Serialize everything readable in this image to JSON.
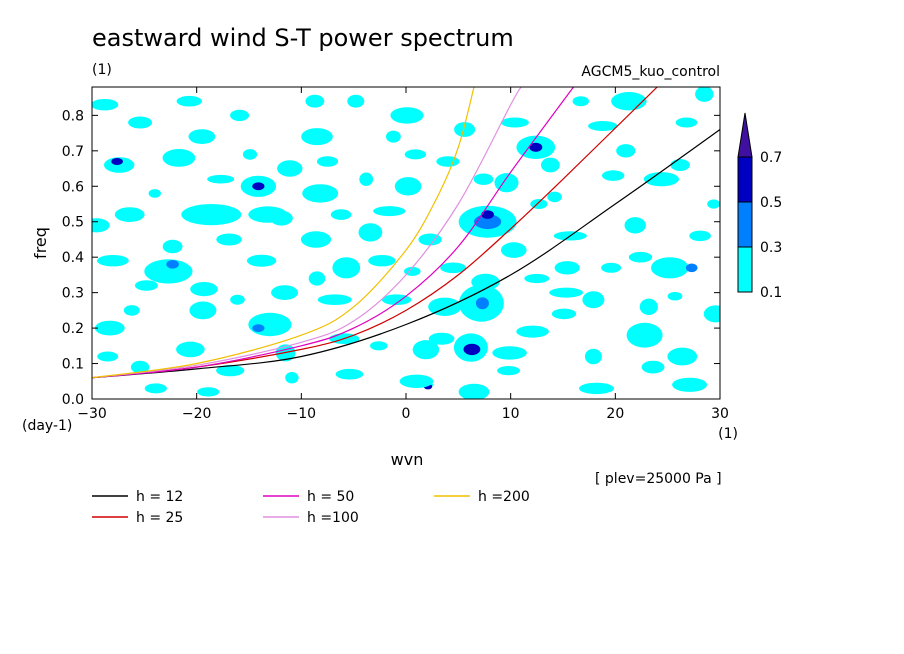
{
  "chart_data": {
    "type": "heatmap",
    "title": "eastward wind S-T power spectrum",
    "subtitle_left": "(1)",
    "subtitle_right": "AGCM5_kuo_control",
    "xlabel": "wvn",
    "ylabel": "freq",
    "x_unit_label": "(1)",
    "y_unit_label": "(day-1)",
    "xlim": [
      -30,
      30
    ],
    "ylim": [
      0,
      0.88
    ],
    "x_ticks": [
      -30,
      -20,
      -10,
      0,
      10,
      20,
      30
    ],
    "y_ticks": [
      0.0,
      0.1,
      0.2,
      0.3,
      0.4,
      0.5,
      0.6,
      0.7,
      0.8
    ],
    "y_tick_labels": [
      "0.0",
      "0.1",
      "0.2",
      "0.3",
      "0.4",
      "0.5",
      "0.6",
      "0.7",
      "0.8"
    ],
    "level_note": "[ plev=25000 Pa ]",
    "colorbar": {
      "levels": [
        "0.1",
        "0.3",
        "0.5",
        "0.7"
      ],
      "colors": [
        "#00ffff",
        "#0080ff",
        "#0000c0",
        "#4010a0"
      ]
    },
    "dispersion_curves": [
      {
        "name": "h = 12",
        "color": "#000000",
        "x": [
          -30,
          -20,
          -10,
          0,
          10,
          20,
          30
        ],
        "y": [
          0.06,
          0.085,
          0.12,
          0.21,
          0.35,
          0.55,
          0.76
        ]
      },
      {
        "name": "h = 25",
        "color": "#d00000",
        "x": [
          -30,
          -20,
          -10,
          -5,
          0,
          5,
          10,
          15,
          24
        ],
        "y": [
          0.06,
          0.09,
          0.14,
          0.18,
          0.25,
          0.35,
          0.48,
          0.62,
          0.88
        ]
      },
      {
        "name": "h = 50",
        "color": "#e000c0",
        "x": [
          -30,
          -20,
          -10,
          -5,
          0,
          5,
          10,
          16
        ],
        "y": [
          0.06,
          0.09,
          0.15,
          0.2,
          0.29,
          0.43,
          0.64,
          0.88
        ]
      },
      {
        "name": "h =100",
        "color": "#e090e0",
        "x": [
          -30,
          -20,
          -10,
          -5,
          0,
          5,
          10,
          11
        ],
        "y": [
          0.06,
          0.095,
          0.16,
          0.22,
          0.35,
          0.55,
          0.83,
          0.88
        ]
      },
      {
        "name": "h =200",
        "color": "#f0c000",
        "x": [
          -30,
          -20,
          -10,
          -5,
          0,
          3,
          5,
          6.5
        ],
        "y": [
          0.06,
          0.1,
          0.18,
          0.26,
          0.42,
          0.57,
          0.71,
          0.88
        ]
      }
    ],
    "blobs": [
      {
        "x": 1.9,
        "y": 0.139,
        "rx": 1.26,
        "ry": 0.027,
        "level": 0
      },
      {
        "x": 6.2,
        "y": 0.145,
        "rx": 1.62,
        "ry": 0.04,
        "level": 0
      },
      {
        "x": 6.3,
        "y": 0.14,
        "rx": 0.8,
        "ry": 0.016,
        "level": 2
      },
      {
        "x": 7.2,
        "y": 0.27,
        "rx": 2.15,
        "ry": 0.052,
        "level": 0
      },
      {
        "x": 7.3,
        "y": 0.27,
        "rx": 0.62,
        "ry": 0.017,
        "level": 1
      },
      {
        "x": 7.8,
        "y": 0.5,
        "rx": 2.76,
        "ry": 0.045,
        "level": 0
      },
      {
        "x": 7.8,
        "y": 0.5,
        "rx": 1.3,
        "ry": 0.021,
        "level": 1
      },
      {
        "x": 7.8,
        "y": 0.52,
        "rx": 0.6,
        "ry": 0.012,
        "level": 2
      },
      {
        "x": 12.4,
        "y": 0.71,
        "rx": 1.85,
        "ry": 0.033,
        "level": 0
      },
      {
        "x": 12.4,
        "y": 0.71,
        "rx": 0.62,
        "ry": 0.013,
        "level": 2
      },
      {
        "x": 25.2,
        "y": 0.37,
        "rx": 1.8,
        "ry": 0.03,
        "level": 0
      },
      {
        "x": 27.3,
        "y": 0.37,
        "rx": 0.55,
        "ry": 0.012,
        "level": 1
      },
      {
        "x": -22.7,
        "y": 0.36,
        "rx": 2.3,
        "ry": 0.034,
        "level": 0
      },
      {
        "x": -22.3,
        "y": 0.38,
        "rx": 0.6,
        "ry": 0.012,
        "level": 1
      },
      {
        "x": -27.4,
        "y": 0.66,
        "rx": 1.45,
        "ry": 0.022,
        "level": 0
      },
      {
        "x": -27.6,
        "y": 0.67,
        "rx": 0.55,
        "ry": 0.01,
        "level": 2
      },
      {
        "x": -14.1,
        "y": 0.6,
        "rx": 1.69,
        "ry": 0.03,
        "level": 0
      },
      {
        "x": -14.1,
        "y": 0.6,
        "rx": 0.58,
        "ry": 0.011,
        "level": 2
      },
      {
        "x": -13.2,
        "y": 0.52,
        "rx": 1.86,
        "ry": 0.023,
        "level": 0
      },
      {
        "x": -18.6,
        "y": 0.52,
        "rx": 2.87,
        "ry": 0.03,
        "level": 0
      },
      {
        "x": -13.0,
        "y": 0.21,
        "rx": 2.06,
        "ry": 0.033,
        "level": 0
      },
      {
        "x": -14.1,
        "y": 0.2,
        "rx": 0.58,
        "ry": 0.011,
        "level": 1
      },
      {
        "x": 2.0,
        "y": 0.04,
        "rx": 0.6,
        "ry": 0.01,
        "level": 0
      },
      {
        "x": 2.1,
        "y": 0.035,
        "rx": 0.4,
        "ry": 0.008,
        "level": 2
      },
      {
        "x": 14.2,
        "y": 0.57,
        "rx": 0.7,
        "ry": 0.015,
        "level": 0
      },
      {
        "x": 22.8,
        "y": 0.18,
        "rx": 1.72,
        "ry": 0.035,
        "level": 0
      },
      {
        "x": -28.3,
        "y": 0.2,
        "rx": 1.42,
        "ry": 0.021,
        "level": 0
      },
      {
        "x": -19.5,
        "y": 0.74,
        "rx": 1.28,
        "ry": 0.021,
        "level": 0
      },
      {
        "x": -8.5,
        "y": 0.74,
        "rx": 1.51,
        "ry": 0.024,
        "level": 0
      },
      {
        "x": 0.2,
        "y": 0.6,
        "rx": 1.27,
        "ry": 0.026,
        "level": 0
      },
      {
        "x": -1.2,
        "y": 0.74,
        "rx": 0.71,
        "ry": 0.017,
        "level": 0
      },
      {
        "x": -5.7,
        "y": 0.37,
        "rx": 1.33,
        "ry": 0.03,
        "level": 0
      },
      {
        "x": -21.7,
        "y": 0.68,
        "rx": 1.57,
        "ry": 0.025,
        "level": 0
      },
      {
        "x": -8.2,
        "y": 0.58,
        "rx": 1.72,
        "ry": 0.026,
        "level": 0
      },
      {
        "x": 7.6,
        "y": 0.33,
        "rx": 1.36,
        "ry": 0.023,
        "level": 0
      },
      {
        "x": 15.4,
        "y": 0.37,
        "rx": 1.2,
        "ry": 0.019,
        "level": 0
      },
      {
        "x": 21.9,
        "y": 0.49,
        "rx": 1.02,
        "ry": 0.023,
        "level": 0
      },
      {
        "x": -26.2,
        "y": 0.25,
        "rx": 0.76,
        "ry": 0.015,
        "level": 0
      },
      {
        "x": -16.1,
        "y": 0.28,
        "rx": 0.7,
        "ry": 0.014,
        "level": 0
      },
      {
        "x": 3.7,
        "y": 0.26,
        "rx": 1.58,
        "ry": 0.026,
        "level": 0
      },
      {
        "x": 26.2,
        "y": 0.66,
        "rx": 0.93,
        "ry": 0.017,
        "level": 0
      },
      {
        "x": -3.4,
        "y": 0.47,
        "rx": 1.14,
        "ry": 0.026,
        "level": 0
      },
      {
        "x": 9.6,
        "y": 0.61,
        "rx": 1.15,
        "ry": 0.027,
        "level": 0
      },
      {
        "x": -8.5,
        "y": 0.34,
        "rx": 0.79,
        "ry": 0.02,
        "level": 0
      },
      {
        "x": 17.9,
        "y": 0.28,
        "rx": 1.05,
        "ry": 0.024,
        "level": 0
      },
      {
        "x": -19.4,
        "y": 0.25,
        "rx": 1.29,
        "ry": 0.025,
        "level": 0
      },
      {
        "x": 1.0,
        "y": 0.05,
        "rx": 1.61,
        "ry": 0.019,
        "level": 0
      },
      {
        "x": -11.9,
        "y": 0.51,
        "rx": 1.09,
        "ry": 0.021,
        "level": 0
      },
      {
        "x": -14.9,
        "y": 0.69,
        "rx": 0.68,
        "ry": 0.015,
        "level": 0
      },
      {
        "x": 22.4,
        "y": 0.4,
        "rx": 1.12,
        "ry": 0.015,
        "level": 0
      },
      {
        "x": 26.4,
        "y": 0.12,
        "rx": 1.42,
        "ry": 0.025,
        "level": 0
      },
      {
        "x": -0.9,
        "y": 0.28,
        "rx": 1.4,
        "ry": 0.015,
        "level": 0
      },
      {
        "x": -5.4,
        "y": 0.07,
        "rx": 1.32,
        "ry": 0.015,
        "level": 0
      },
      {
        "x": 28.5,
        "y": 0.86,
        "rx": 0.88,
        "ry": 0.022,
        "level": 0
      },
      {
        "x": -24.0,
        "y": 0.58,
        "rx": 0.59,
        "ry": 0.012,
        "level": 0
      },
      {
        "x": 13.8,
        "y": 0.66,
        "rx": 0.9,
        "ry": 0.021,
        "level": 0
      },
      {
        "x": 17.9,
        "y": 0.12,
        "rx": 0.81,
        "ry": 0.022,
        "level": 0
      },
      {
        "x": 21.3,
        "y": 0.84,
        "rx": 1.69,
        "ry": 0.026,
        "level": 0
      },
      {
        "x": -29.6,
        "y": 0.49,
        "rx": 1.29,
        "ry": 0.02,
        "level": 0
      },
      {
        "x": -2.3,
        "y": 0.39,
        "rx": 1.31,
        "ry": 0.016,
        "level": 0
      },
      {
        "x": -8.7,
        "y": 0.84,
        "rx": 0.9,
        "ry": 0.018,
        "level": 0
      },
      {
        "x": -22.3,
        "y": 0.43,
        "rx": 0.95,
        "ry": 0.019,
        "level": 0
      },
      {
        "x": 12.5,
        "y": 0.34,
        "rx": 1.19,
        "ry": 0.013,
        "level": 0
      },
      {
        "x": -11.5,
        "y": 0.13,
        "rx": 0.95,
        "ry": 0.024,
        "level": 0
      },
      {
        "x": 0.1,
        "y": 0.8,
        "rx": 1.59,
        "ry": 0.023,
        "level": 0
      },
      {
        "x": 21.0,
        "y": 0.7,
        "rx": 0.92,
        "ry": 0.019,
        "level": 0
      },
      {
        "x": -15.9,
        "y": 0.8,
        "rx": 0.91,
        "ry": 0.016,
        "level": 0
      },
      {
        "x": -26.4,
        "y": 0.52,
        "rx": 1.42,
        "ry": 0.021,
        "level": 0
      },
      {
        "x": 15.3,
        "y": 0.3,
        "rx": 1.61,
        "ry": 0.014,
        "level": 0
      },
      {
        "x": 15.1,
        "y": 0.24,
        "rx": 1.17,
        "ry": 0.015,
        "level": 0
      },
      {
        "x": 29.6,
        "y": 0.24,
        "rx": 1.15,
        "ry": 0.024,
        "level": 0
      },
      {
        "x": -16.8,
        "y": 0.08,
        "rx": 1.35,
        "ry": 0.016,
        "level": 0
      },
      {
        "x": 4.5,
        "y": 0.37,
        "rx": 1.23,
        "ry": 0.015,
        "level": 0
      },
      {
        "x": -19.3,
        "y": 0.31,
        "rx": 1.32,
        "ry": 0.02,
        "level": 0
      },
      {
        "x": -8.6,
        "y": 0.45,
        "rx": 1.44,
        "ry": 0.023,
        "level": 0
      },
      {
        "x": 27.1,
        "y": 0.04,
        "rx": 1.67,
        "ry": 0.02,
        "level": 0
      },
      {
        "x": 3.4,
        "y": 0.17,
        "rx": 1.22,
        "ry": 0.017,
        "level": 0
      },
      {
        "x": -25.4,
        "y": 0.78,
        "rx": 1.15,
        "ry": 0.017,
        "level": 0
      },
      {
        "x": 9.9,
        "y": 0.13,
        "rx": 1.65,
        "ry": 0.019,
        "level": 0
      },
      {
        "x": 15.7,
        "y": 0.46,
        "rx": 1.59,
        "ry": 0.013,
        "level": 0
      },
      {
        "x": -3.8,
        "y": 0.62,
        "rx": 0.66,
        "ry": 0.019,
        "level": 0
      },
      {
        "x": 24.4,
        "y": 0.62,
        "rx": 1.68,
        "ry": 0.02,
        "level": 0
      },
      {
        "x": -11.6,
        "y": 0.3,
        "rx": 1.29,
        "ry": 0.021,
        "level": 0
      },
      {
        "x": -28.0,
        "y": 0.39,
        "rx": 1.52,
        "ry": 0.016,
        "level": 0
      },
      {
        "x": 5.6,
        "y": 0.76,
        "rx": 1.0,
        "ry": 0.021,
        "level": 0
      },
      {
        "x": -4.8,
        "y": 0.84,
        "rx": 0.81,
        "ry": 0.018,
        "level": 0
      },
      {
        "x": 18.8,
        "y": 0.77,
        "rx": 1.4,
        "ry": 0.014,
        "level": 0
      },
      {
        "x": -13.8,
        "y": 0.39,
        "rx": 1.4,
        "ry": 0.017,
        "level": 0
      },
      {
        "x": 10.3,
        "y": 0.42,
        "rx": 1.22,
        "ry": 0.022,
        "level": 0
      },
      {
        "x": -20.6,
        "y": 0.14,
        "rx": 1.37,
        "ry": 0.022,
        "level": 0
      },
      {
        "x": -23.9,
        "y": 0.03,
        "rx": 1.06,
        "ry": 0.014,
        "level": 0
      },
      {
        "x": 18.2,
        "y": 0.03,
        "rx": 1.67,
        "ry": 0.016,
        "level": 0
      },
      {
        "x": -1.6,
        "y": 0.53,
        "rx": 1.54,
        "ry": 0.014,
        "level": 0
      },
      {
        "x": 25.7,
        "y": 0.29,
        "rx": 0.71,
        "ry": 0.012,
        "level": 0
      },
      {
        "x": -6.8,
        "y": 0.28,
        "rx": 1.62,
        "ry": 0.015,
        "level": 0
      },
      {
        "x": 10.4,
        "y": 0.78,
        "rx": 1.34,
        "ry": 0.014,
        "level": 0
      },
      {
        "x": -17.7,
        "y": 0.62,
        "rx": 1.29,
        "ry": 0.012,
        "level": 0
      },
      {
        "x": 29.4,
        "y": 0.55,
        "rx": 0.62,
        "ry": 0.013,
        "level": 0
      },
      {
        "x": 6.5,
        "y": 0.02,
        "rx": 1.47,
        "ry": 0.023,
        "level": 0
      },
      {
        "x": -10.9,
        "y": 0.06,
        "rx": 0.64,
        "ry": 0.016,
        "level": 0
      },
      {
        "x": 23.2,
        "y": 0.26,
        "rx": 0.87,
        "ry": 0.023,
        "level": 0
      },
      {
        "x": 0.6,
        "y": 0.36,
        "rx": 0.79,
        "ry": 0.013,
        "level": 0
      },
      {
        "x": -25.4,
        "y": 0.09,
        "rx": 0.88,
        "ry": 0.018,
        "level": 0
      },
      {
        "x": 12.1,
        "y": 0.19,
        "rx": 1.56,
        "ry": 0.017,
        "level": 0
      },
      {
        "x": -5.9,
        "y": 0.17,
        "rx": 1.44,
        "ry": 0.015,
        "level": 0
      },
      {
        "x": 28.1,
        "y": 0.46,
        "rx": 1.03,
        "ry": 0.015,
        "level": 0
      },
      {
        "x": 16.7,
        "y": 0.84,
        "rx": 0.78,
        "ry": 0.014,
        "level": 0
      },
      {
        "x": -11.1,
        "y": 0.65,
        "rx": 1.21,
        "ry": 0.023,
        "level": 0
      },
      {
        "x": 4.0,
        "y": 0.67,
        "rx": 1.11,
        "ry": 0.015,
        "level": 0
      },
      {
        "x": -28.8,
        "y": 0.83,
        "rx": 1.31,
        "ry": 0.016,
        "level": 0
      },
      {
        "x": -20.7,
        "y": 0.84,
        "rx": 1.21,
        "ry": 0.015,
        "level": 0
      },
      {
        "x": 19.8,
        "y": 0.63,
        "rx": 1.07,
        "ry": 0.015,
        "level": 0
      },
      {
        "x": -16.9,
        "y": 0.45,
        "rx": 1.22,
        "ry": 0.017,
        "level": 0
      },
      {
        "x": 9.8,
        "y": 0.08,
        "rx": 1.1,
        "ry": 0.013,
        "level": 0
      },
      {
        "x": 23.6,
        "y": 0.09,
        "rx": 1.09,
        "ry": 0.018,
        "level": 0
      },
      {
        "x": -2.6,
        "y": 0.15,
        "rx": 0.84,
        "ry": 0.013,
        "level": 0
      },
      {
        "x": 2.3,
        "y": 0.45,
        "rx": 1.12,
        "ry": 0.017,
        "level": 0
      },
      {
        "x": -7.5,
        "y": 0.67,
        "rx": 1.01,
        "ry": 0.015,
        "level": 0
      },
      {
        "x": 12.7,
        "y": 0.55,
        "rx": 0.82,
        "ry": 0.014,
        "level": 0
      },
      {
        "x": -24.8,
        "y": 0.32,
        "rx": 1.1,
        "ry": 0.015,
        "level": 0
      },
      {
        "x": 19.6,
        "y": 0.37,
        "rx": 0.96,
        "ry": 0.014,
        "level": 0
      },
      {
        "x": -18.9,
        "y": 0.02,
        "rx": 1.07,
        "ry": 0.013,
        "level": 0
      },
      {
        "x": 26.8,
        "y": 0.78,
        "rx": 1.03,
        "ry": 0.014,
        "level": 0
      },
      {
        "x": -28.5,
        "y": 0.12,
        "rx": 1.0,
        "ry": 0.014,
        "level": 0
      },
      {
        "x": 7.4,
        "y": 0.62,
        "rx": 0.94,
        "ry": 0.016,
        "level": 0
      },
      {
        "x": -6.2,
        "y": 0.52,
        "rx": 0.98,
        "ry": 0.015,
        "level": 0
      },
      {
        "x": 0.9,
        "y": 0.69,
        "rx": 1.02,
        "ry": 0.014,
        "level": 0
      }
    ]
  }
}
